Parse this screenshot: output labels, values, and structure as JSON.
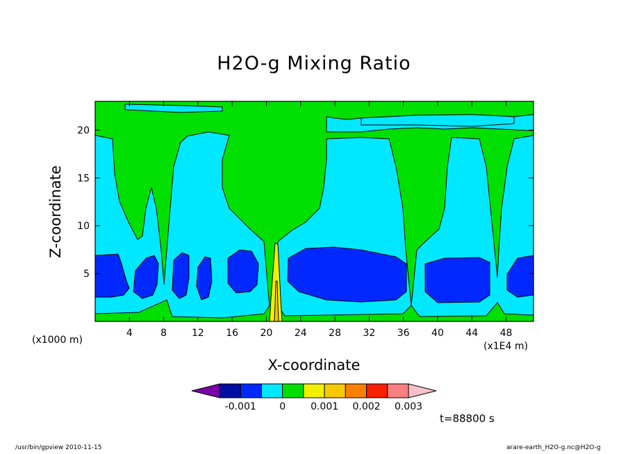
{
  "chart_data": {
    "type": "heatmap",
    "title": "H2O-g Mixing Ratio",
    "xlabel": "X-coordinate",
    "ylabel": "Z-coordinate",
    "x_unit": "(x1000 m)",
    "x_scale": "(x1E4 m)",
    "xlim": [
      0,
      51.2
    ],
    "ylim": [
      0,
      23
    ],
    "x_ticks": [
      4,
      8,
      12,
      16,
      20,
      24,
      28,
      32,
      36,
      40,
      44,
      48
    ],
    "y_ticks": [
      5,
      10,
      15,
      20
    ],
    "colorbar": {
      "levels": [
        -0.0015,
        -0.001,
        -0.0005,
        0,
        0.0005,
        0.001,
        0.0015,
        0.002,
        0.0025,
        0.003,
        0.0035
      ],
      "labels": [
        "-0.001",
        "0",
        "0.001",
        "0.002",
        "0.003"
      ],
      "label_values": [
        -0.001,
        0,
        0.001,
        0.002,
        0.003
      ],
      "colors": [
        "#7a00a8",
        "#000fa0",
        "#0028ff",
        "#00e8ff",
        "#00e000",
        "#f0f000",
        "#f8c800",
        "#f88000",
        "#f82000",
        "#f88080",
        "#f8c0c8"
      ]
    },
    "regions": {
      "background": "cyan",
      "upper_band": "green",
      "low_pockets": "blue",
      "plume_core": "yellow"
    },
    "time_label": "t=88800 s"
  },
  "footer": {
    "left": "/usr/bin/gpview  2010-11-15",
    "right": "arare-earth_H2O-g.nc@H2O-g"
  }
}
